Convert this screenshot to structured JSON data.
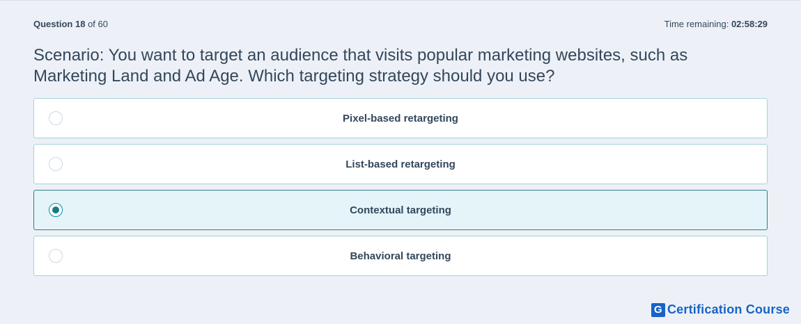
{
  "header": {
    "question_label": "Question",
    "question_number": "18",
    "question_of": "of 60",
    "timer_label": "Time remaining:",
    "timer_value": "02:58:29"
  },
  "question": {
    "text": "Scenario: You want to target an audience that visits popular marketing websites, such as Marketing Land and Ad Age. Which targeting strategy should you use?"
  },
  "options": [
    {
      "label": "Pixel-based retargeting",
      "selected": false
    },
    {
      "label": "List-based retargeting",
      "selected": false
    },
    {
      "label": "Contextual targeting",
      "selected": true
    },
    {
      "label": "Behavioral targeting",
      "selected": false
    }
  ],
  "brand": {
    "logo_letter": "G",
    "name": "Certification Course",
    "color": "#1863c7"
  },
  "colors": {
    "background": "#edf1f7",
    "option_border": "#9fd4d8",
    "selected_background": "#e5f4f8",
    "selected_border": "#2f7d85",
    "radio_dot": "#1b7b84",
    "text": "#33475b"
  }
}
